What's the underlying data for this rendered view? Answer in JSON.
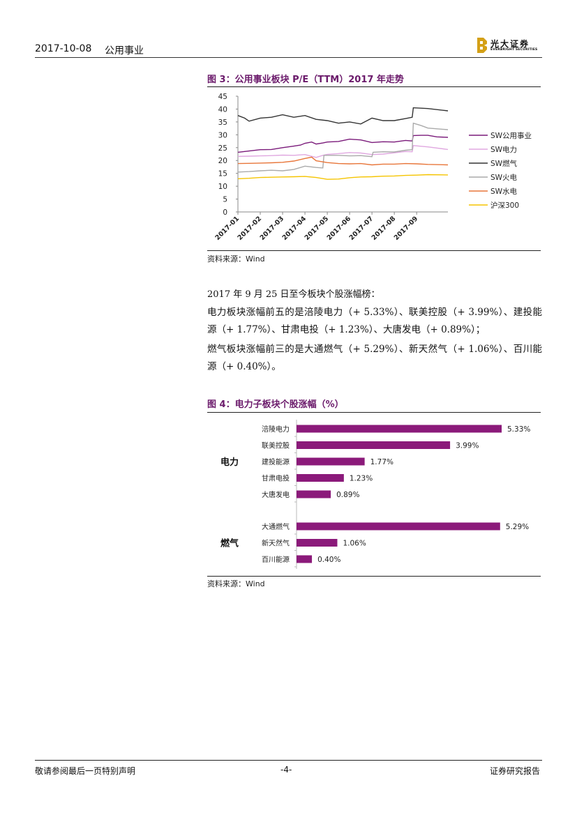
{
  "header": {
    "date": "2017-10-08",
    "sector": "公用事业",
    "logo_text": "光大证券",
    "logo_subtext": "EVERBRIGHT SECURITIES"
  },
  "figure3": {
    "title": "图 3：公用事业板块 P/E（TTM）2017 年走势",
    "source": "资料来源：Wind"
  },
  "intro": "2017 年 9 月 25 日至今板块个股涨幅榜：",
  "paragraphs": {
    "power": "电力板块涨幅前五的是涪陵电力（+ 5.33%）、联美控股（+ 3.99%）、建投能源（+ 1.77%）、甘肃电投（+ 1.23%）、大唐发电（+ 0.89%）；",
    "gas": "燃气板块涨幅前三的是大通燃气（+ 5.29%）、新天然气（+ 1.06%）、百川能源（+ 0.40%）。"
  },
  "figure4": {
    "title": "图 4：电力子板块个股涨幅（%）",
    "source": "资料来源：Wind"
  },
  "chart_data": [
    {
      "type": "line",
      "title": "图 3：公用事业板块 P/E（TTM）2017 年走势",
      "ylim": [
        0,
        45
      ],
      "yticks": [
        0,
        5,
        10,
        15,
        20,
        25,
        30,
        35,
        40,
        45
      ],
      "xticks": [
        "2017-01",
        "2017-02",
        "2017-03",
        "2017-04",
        "2017-05",
        "2017-06",
        "2017-07",
        "2017-08",
        "2017-09"
      ],
      "x_range_months": [
        0,
        9.4
      ],
      "grid": false,
      "legend_position": "right",
      "series": [
        {
          "name": "SW公用事业",
          "color": "#7a1a7a",
          "points": [
            [
              0,
              23.2
            ],
            [
              0.5,
              23.7
            ],
            [
              1,
              24.2
            ],
            [
              1.5,
              24.3
            ],
            [
              2,
              25.0
            ],
            [
              2.5,
              25.6
            ],
            [
              2.8,
              26.0
            ],
            [
              3,
              26.7
            ],
            [
              3.3,
              27.2
            ],
            [
              3.5,
              26.4
            ],
            [
              3.8,
              26.8
            ],
            [
              4,
              27.2
            ],
            [
              4.5,
              27.4
            ],
            [
              5,
              28.3
            ],
            [
              5.5,
              28.0
            ],
            [
              6,
              27.0
            ],
            [
              6.5,
              27.3
            ],
            [
              7,
              27.2
            ],
            [
              7.5,
              27.8
            ],
            [
              7.8,
              27.6
            ],
            [
              7.85,
              29.7
            ],
            [
              8.2,
              29.8
            ],
            [
              8.5,
              29.8
            ],
            [
              8.9,
              29.2
            ],
            [
              9.4,
              29.0
            ]
          ]
        },
        {
          "name": "SW电力",
          "color": "#e0a8e0",
          "points": [
            [
              0,
              21.6
            ],
            [
              0.5,
              21.7
            ],
            [
              1,
              21.8
            ],
            [
              1.5,
              21.9
            ],
            [
              2,
              22.1
            ],
            [
              2.5,
              22.0
            ],
            [
              3,
              22.3
            ],
            [
              3.5,
              21.2
            ],
            [
              3.8,
              22.0
            ],
            [
              4,
              22.4
            ],
            [
              4.5,
              22.7
            ],
            [
              5,
              23.1
            ],
            [
              5.5,
              22.9
            ],
            [
              6,
              22.3
            ],
            [
              6.5,
              22.5
            ],
            [
              7,
              23.0
            ],
            [
              7.5,
              23.5
            ],
            [
              7.8,
              23.4
            ],
            [
              7.85,
              25.8
            ],
            [
              8.5,
              25.3
            ],
            [
              9.4,
              24.3
            ]
          ]
        },
        {
          "name": "SW燃气",
          "color": "#333333",
          "points": [
            [
              0,
              37.5
            ],
            [
              0.3,
              36.5
            ],
            [
              0.5,
              35.3
            ],
            [
              1,
              36.5
            ],
            [
              1.5,
              36.8
            ],
            [
              2,
              37.8
            ],
            [
              2.5,
              36.8
            ],
            [
              3,
              37.5
            ],
            [
              3.5,
              36.0
            ],
            [
              4,
              35.5
            ],
            [
              4.5,
              34.5
            ],
            [
              5,
              35.0
            ],
            [
              5.5,
              34.2
            ],
            [
              6,
              36.5
            ],
            [
              6.5,
              35.5
            ],
            [
              7,
              35.5
            ],
            [
              7.5,
              36.3
            ],
            [
              7.8,
              36.8
            ],
            [
              7.85,
              40.5
            ],
            [
              8.5,
              40.2
            ],
            [
              9.4,
              39.3
            ]
          ]
        },
        {
          "name": "SW火电",
          "color": "#aaaaaa",
          "points": [
            [
              0,
              15.5
            ],
            [
              0.5,
              15.7
            ],
            [
              1,
              16.0
            ],
            [
              1.5,
              16.2
            ],
            [
              2,
              16.0
            ],
            [
              2.5,
              16.5
            ],
            [
              3,
              17.8
            ],
            [
              3.5,
              17.3
            ],
            [
              3.8,
              17.1
            ],
            [
              3.85,
              22.0
            ],
            [
              4.5,
              22.0
            ],
            [
              5,
              21.8
            ],
            [
              5.5,
              21.9
            ],
            [
              6,
              21.5
            ],
            [
              6.05,
              23.2
            ],
            [
              6.5,
              23.4
            ],
            [
              7,
              23.3
            ],
            [
              7.5,
              24.0
            ],
            [
              7.8,
              24.2
            ],
            [
              7.85,
              34.5
            ],
            [
              8.2,
              33.6
            ],
            [
              8.5,
              32.6
            ],
            [
              9.4,
              32.0
            ]
          ]
        },
        {
          "name": "SW水电",
          "color": "#e8763a",
          "points": [
            [
              0,
              18.8
            ],
            [
              0.5,
              18.9
            ],
            [
              1,
              19.0
            ],
            [
              1.5,
              19.1
            ],
            [
              2,
              19.3
            ],
            [
              2.5,
              19.8
            ],
            [
              3,
              20.8
            ],
            [
              3.3,
              21.3
            ],
            [
              3.5,
              19.9
            ],
            [
              4,
              19.2
            ],
            [
              4.5,
              18.8
            ],
            [
              5,
              18.7
            ],
            [
              5.5,
              18.8
            ],
            [
              6,
              18.3
            ],
            [
              6.5,
              18.6
            ],
            [
              7,
              18.6
            ],
            [
              7.5,
              18.8
            ],
            [
              8,
              18.7
            ],
            [
              8.5,
              18.5
            ],
            [
              9.4,
              18.3
            ]
          ]
        },
        {
          "name": "沪深300",
          "color": "#f5c400",
          "points": [
            [
              0,
              12.9
            ],
            [
              0.5,
              13.1
            ],
            [
              1,
              13.4
            ],
            [
              1.5,
              13.5
            ],
            [
              2,
              13.6
            ],
            [
              2.5,
              13.7
            ],
            [
              3,
              13.8
            ],
            [
              3.5,
              13.4
            ],
            [
              4,
              12.7
            ],
            [
              4.5,
              12.8
            ],
            [
              5,
              13.3
            ],
            [
              5.5,
              13.6
            ],
            [
              6,
              13.7
            ],
            [
              6.5,
              13.9
            ],
            [
              7,
              14.0
            ],
            [
              7.5,
              14.2
            ],
            [
              8,
              14.3
            ],
            [
              8.5,
              14.5
            ],
            [
              9.4,
              14.4
            ]
          ]
        }
      ]
    },
    {
      "type": "bar",
      "orientation": "horizontal",
      "title": "图 4：电力子板块个股涨幅（%）",
      "xlim": [
        0,
        6
      ],
      "groups": [
        {
          "label": "电力",
          "categories": [
            "涪陵电力",
            "联美控股",
            "建投能源",
            "甘肃电投",
            "大唐发电"
          ],
          "values": [
            5.33,
            3.99,
            1.77,
            1.23,
            0.89
          ],
          "value_labels": [
            "5.33%",
            "3.99%",
            "1.77%",
            "1.23%",
            "0.89%"
          ]
        },
        {
          "label": "燃气",
          "categories": [
            "大通燃气",
            "新天然气",
            "百川能源"
          ],
          "values": [
            5.29,
            1.06,
            0.4
          ],
          "value_labels": [
            "5.29%",
            "1.06%",
            "0.40%"
          ]
        }
      ],
      "bar_color": "#8b1a7a"
    }
  ],
  "footer": {
    "disclaimer": "敬请参阅最后一页特别声明",
    "page": "-4-",
    "report_type": "证券研究报告"
  }
}
